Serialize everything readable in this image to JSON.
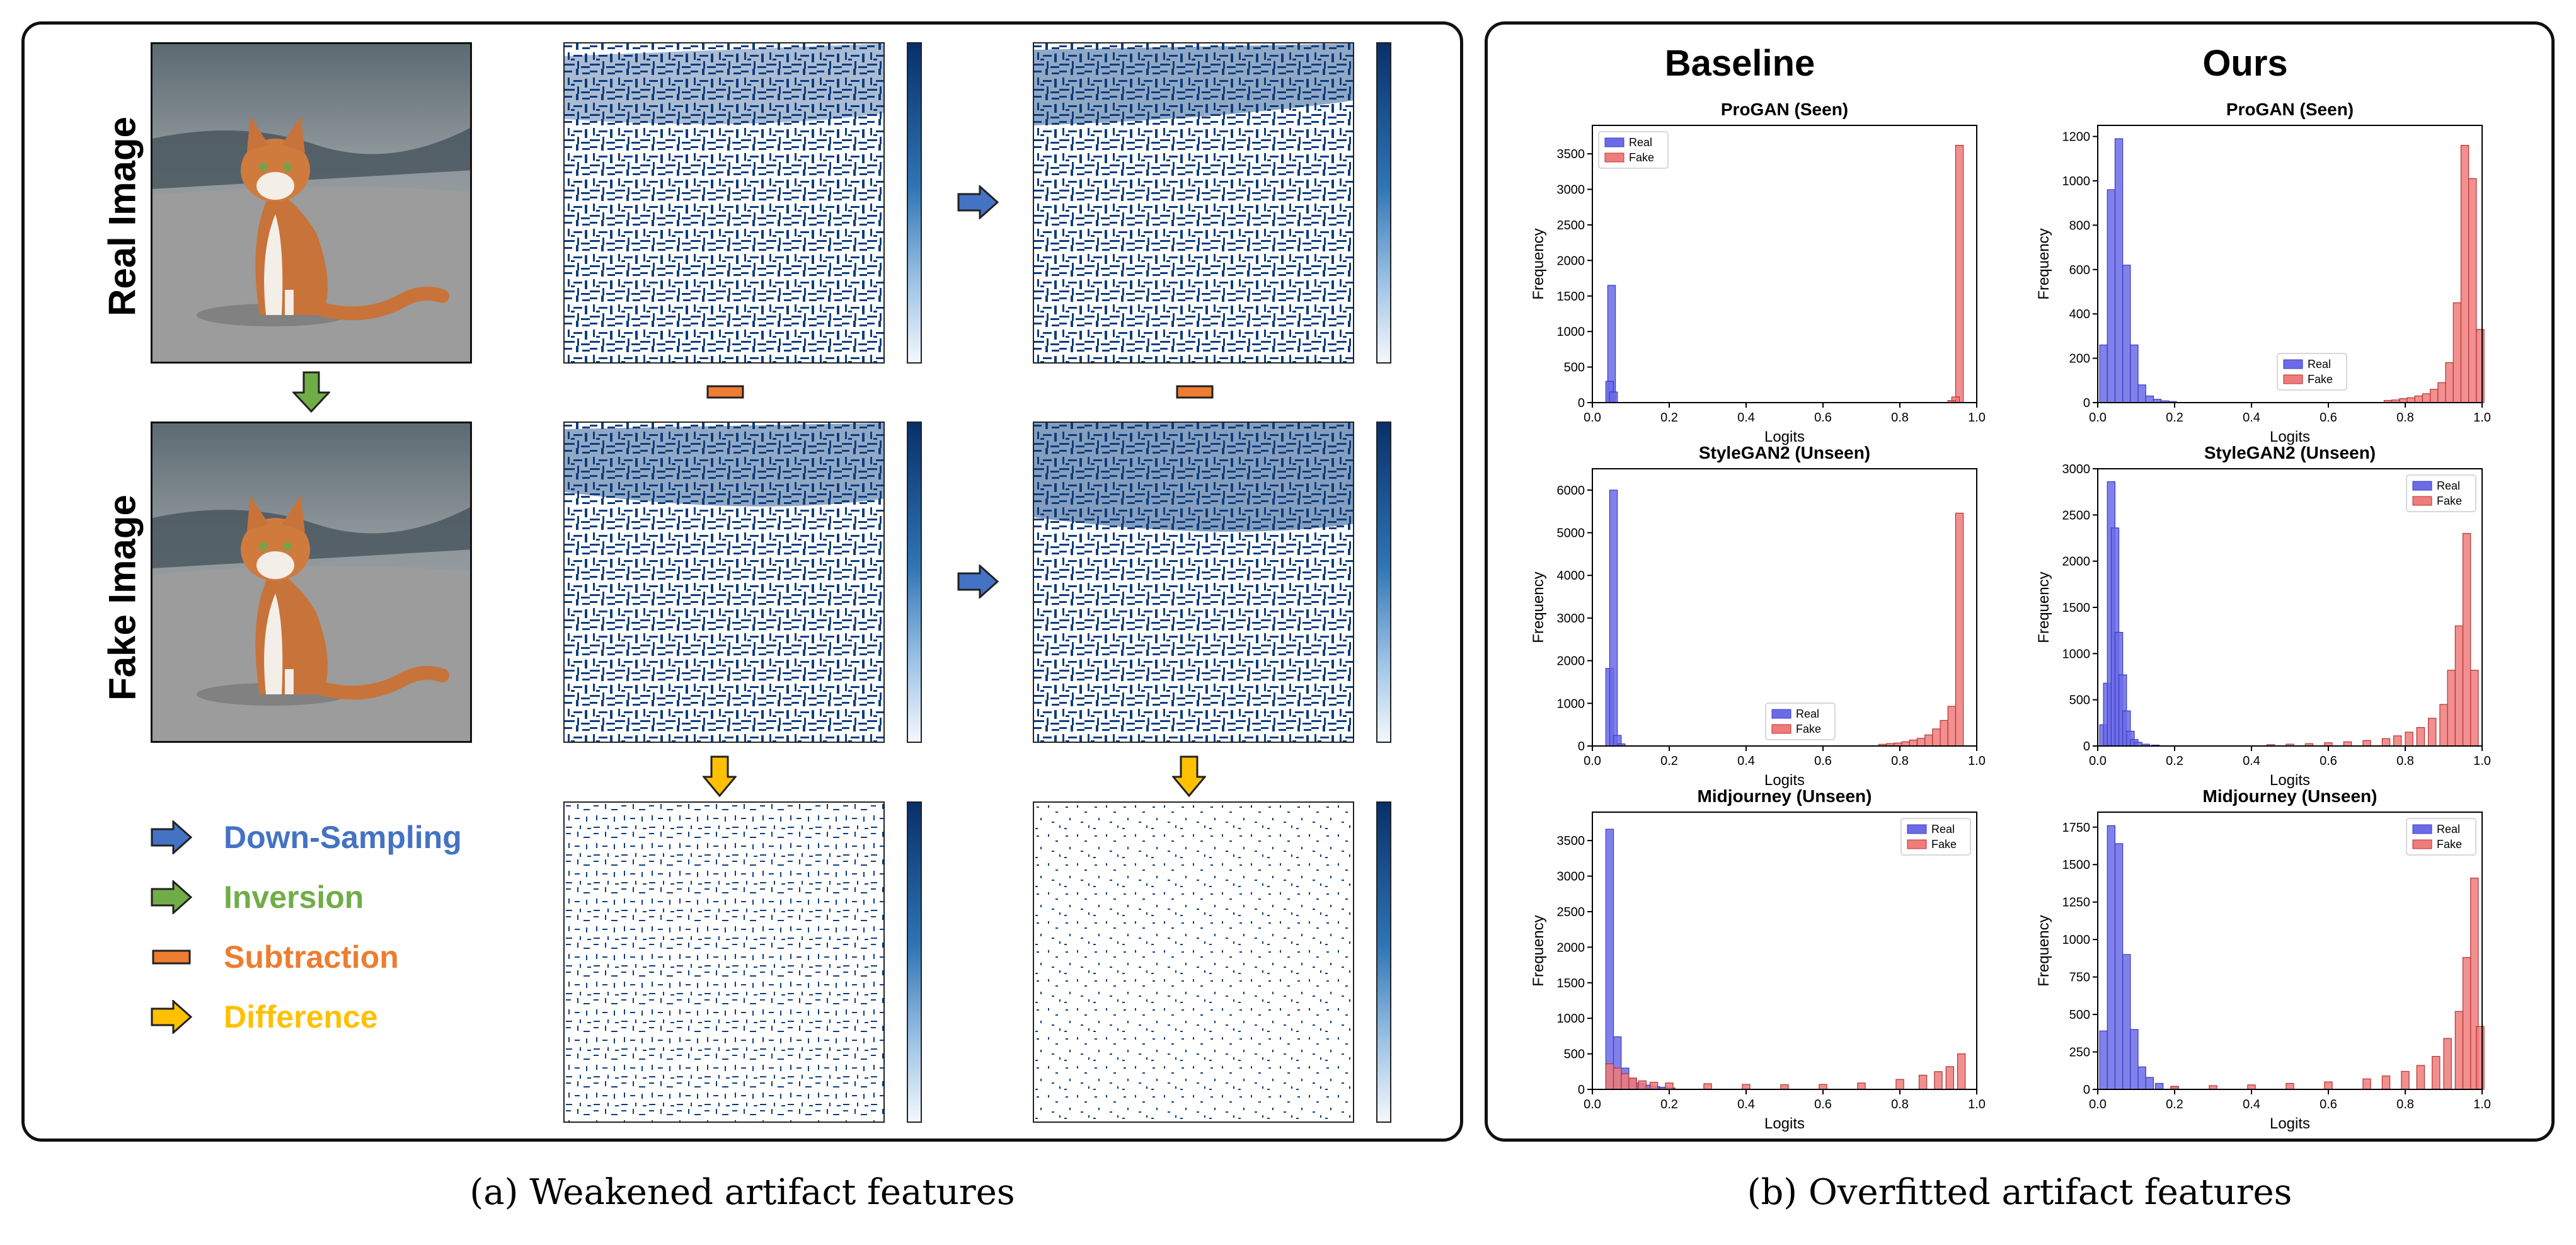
{
  "panel_a": {
    "row_labels": [
      "Real Image",
      "Fake Image"
    ],
    "legend": [
      {
        "label": "Down-Sampling",
        "color": "#4472c4"
      },
      {
        "label": "Inversion",
        "color": "#70ad47"
      },
      {
        "label": "Subtraction",
        "color": "#ed7d31"
      },
      {
        "label": "Difference",
        "color": "#ffc000"
      }
    ],
    "caption": "(a) Weakened artifact features"
  },
  "panel_b": {
    "column_headers": [
      "Baseline",
      "Ours"
    ],
    "caption": "(b) Overfitted artifact features"
  },
  "colors": {
    "real": "#6b6be8",
    "fake": "#f07b7b",
    "feature_map": "#0b3d7e"
  },
  "chart_data": [
    {
      "type": "bar",
      "title": "ProGAN (Seen)",
      "xlabel": "Logits",
      "ylabel": "Frequency",
      "xlim": [
        0,
        1
      ],
      "ylim": [
        0,
        3900
      ],
      "yticks": [
        0,
        500,
        1000,
        1500,
        2000,
        2500,
        3000,
        3500
      ],
      "xticks": [
        0.0,
        0.2,
        0.4,
        0.6,
        0.8,
        1.0
      ],
      "legend_loc": "upper-left",
      "series": [
        {
          "name": "Real",
          "peaks": [
            [
              0.05,
              1650
            ],
            [
              0.045,
              300
            ],
            [
              0.055,
              150
            ]
          ]
        },
        {
          "name": "Fake",
          "peaks": [
            [
              0.955,
              3620
            ],
            [
              0.945,
              80
            ],
            [
              0.935,
              30
            ]
          ]
        }
      ]
    },
    {
      "type": "bar",
      "title": "ProGAN (Seen)",
      "xlabel": "Logits",
      "ylabel": "Frequency",
      "xlim": [
        0,
        1
      ],
      "ylim": [
        0,
        1250
      ],
      "yticks": [
        0,
        200,
        400,
        600,
        800,
        1000,
        1200
      ],
      "xticks": [
        0.0,
        0.2,
        0.4,
        0.6,
        0.8,
        1.0
      ],
      "legend_loc": "center",
      "series": [
        {
          "name": "Real",
          "peaks": [
            [
              0.015,
              260
            ],
            [
              0.035,
              960
            ],
            [
              0.055,
              1190
            ],
            [
              0.075,
              620
            ],
            [
              0.095,
              260
            ],
            [
              0.115,
              80
            ],
            [
              0.135,
              30
            ],
            [
              0.155,
              15
            ],
            [
              0.175,
              8
            ],
            [
              0.195,
              5
            ]
          ]
        },
        {
          "name": "Fake",
          "peaks": [
            [
              0.755,
              10
            ],
            [
              0.775,
              12
            ],
            [
              0.795,
              18
            ],
            [
              0.815,
              22
            ],
            [
              0.835,
              30
            ],
            [
              0.855,
              40
            ],
            [
              0.875,
              60
            ],
            [
              0.895,
              90
            ],
            [
              0.915,
              180
            ],
            [
              0.935,
              450
            ],
            [
              0.955,
              1160
            ],
            [
              0.975,
              1010
            ],
            [
              0.995,
              330
            ]
          ]
        }
      ]
    },
    {
      "type": "bar",
      "title": "StyleGAN2 (Unseen)",
      "xlabel": "Logits",
      "ylabel": "Frequency",
      "xlim": [
        0,
        1
      ],
      "ylim": [
        0,
        6500
      ],
      "yticks": [
        0,
        1000,
        2000,
        3000,
        4000,
        5000,
        6000
      ],
      "xticks": [
        0.0,
        0.2,
        0.4,
        0.6,
        0.8,
        1.0
      ],
      "legend_loc": "lower-center",
      "series": [
        {
          "name": "Real",
          "peaks": [
            [
              0.045,
              1820
            ],
            [
              0.055,
              6000
            ],
            [
              0.065,
              250
            ],
            [
              0.075,
              50
            ]
          ]
        },
        {
          "name": "Fake",
          "peaks": [
            [
              0.755,
              40
            ],
            [
              0.775,
              55
            ],
            [
              0.795,
              70
            ],
            [
              0.815,
              100
            ],
            [
              0.835,
              140
            ],
            [
              0.855,
              180
            ],
            [
              0.875,
              260
            ],
            [
              0.895,
              400
            ],
            [
              0.915,
              600
            ],
            [
              0.935,
              930
            ],
            [
              0.955,
              5460
            ]
          ]
        }
      ]
    },
    {
      "type": "bar",
      "title": "StyleGAN2 (Unseen)",
      "xlabel": "Logits",
      "ylabel": "Frequency",
      "xlim": [
        0,
        1
      ],
      "ylim": [
        0,
        3000
      ],
      "yticks": [
        0,
        500,
        1000,
        1500,
        2000,
        2500,
        3000
      ],
      "xticks": [
        0.0,
        0.2,
        0.4,
        0.6,
        0.8,
        1.0
      ],
      "legend_loc": "upper-right",
      "series": [
        {
          "name": "Real",
          "peaks": [
            [
              0.015,
              230
            ],
            [
              0.025,
              680
            ],
            [
              0.035,
              2860
            ],
            [
              0.045,
              2360
            ],
            [
              0.055,
              1230
            ],
            [
              0.065,
              770
            ],
            [
              0.075,
              380
            ],
            [
              0.085,
              160
            ],
            [
              0.095,
              70
            ],
            [
              0.105,
              40
            ],
            [
              0.125,
              20
            ],
            [
              0.15,
              10
            ]
          ]
        },
        {
          "name": "Fake",
          "peaks": [
            [
              0.45,
              15
            ],
            [
              0.5,
              20
            ],
            [
              0.55,
              25
            ],
            [
              0.6,
              35
            ],
            [
              0.65,
              45
            ],
            [
              0.7,
              60
            ],
            [
              0.75,
              80
            ],
            [
              0.78,
              110
            ],
            [
              0.81,
              150
            ],
            [
              0.84,
              200
            ],
            [
              0.87,
              300
            ],
            [
              0.9,
              450
            ],
            [
              0.92,
              820
            ],
            [
              0.94,
              1300
            ],
            [
              0.96,
              2300
            ],
            [
              0.98,
              820
            ]
          ]
        }
      ]
    },
    {
      "type": "bar",
      "title": "Midjourney (Unseen)",
      "xlabel": "Logits",
      "ylabel": "Frequency",
      "xlim": [
        0,
        1
      ],
      "ylim": [
        0,
        3900
      ],
      "yticks": [
        0,
        500,
        1000,
        1500,
        2000,
        2500,
        3000,
        3500
      ],
      "xticks": [
        0.0,
        0.2,
        0.4,
        0.6,
        0.8,
        1.0
      ],
      "legend_loc": "upper-right",
      "series": [
        {
          "name": "Real",
          "peaks": [
            [
              0.045,
              3660
            ],
            [
              0.065,
              740
            ],
            [
              0.085,
              300
            ],
            [
              0.105,
              150
            ],
            [
              0.125,
              90
            ],
            [
              0.145,
              60
            ],
            [
              0.165,
              40
            ],
            [
              0.185,
              30
            ],
            [
              0.205,
              20
            ]
          ]
        },
        {
          "name": "Fake",
          "peaks": [
            [
              0.045,
              360
            ],
            [
              0.065,
              300
            ],
            [
              0.085,
              220
            ],
            [
              0.105,
              160
            ],
            [
              0.13,
              120
            ],
            [
              0.16,
              100
            ],
            [
              0.2,
              90
            ],
            [
              0.3,
              80
            ],
            [
              0.4,
              70
            ],
            [
              0.5,
              65
            ],
            [
              0.6,
              70
            ],
            [
              0.7,
              90
            ],
            [
              0.8,
              140
            ],
            [
              0.86,
              200
            ],
            [
              0.9,
              250
            ],
            [
              0.93,
              320
            ],
            [
              0.96,
              500
            ]
          ]
        }
      ]
    },
    {
      "type": "bar",
      "title": "Midjourney (Unseen)",
      "xlabel": "Logits",
      "ylabel": "Frequency",
      "xlim": [
        0,
        1
      ],
      "ylim": [
        0,
        1850
      ],
      "yticks": [
        0,
        250,
        500,
        750,
        1000,
        1250,
        1500,
        1750
      ],
      "xticks": [
        0.0,
        0.2,
        0.4,
        0.6,
        0.8,
        1.0
      ],
      "legend_loc": "upper-right",
      "series": [
        {
          "name": "Real",
          "peaks": [
            [
              0.015,
              390
            ],
            [
              0.035,
              1760
            ],
            [
              0.055,
              1640
            ],
            [
              0.075,
              900
            ],
            [
              0.095,
              400
            ],
            [
              0.115,
              150
            ],
            [
              0.135,
              80
            ],
            [
              0.16,
              40
            ],
            [
              0.2,
              20
            ]
          ]
        },
        {
          "name": "Fake",
          "peaks": [
            [
              0.2,
              20
            ],
            [
              0.3,
              25
            ],
            [
              0.4,
              30
            ],
            [
              0.5,
              40
            ],
            [
              0.6,
              50
            ],
            [
              0.7,
              70
            ],
            [
              0.75,
              90
            ],
            [
              0.8,
              120
            ],
            [
              0.84,
              160
            ],
            [
              0.88,
              220
            ],
            [
              0.91,
              340
            ],
            [
              0.94,
              520
            ],
            [
              0.96,
              880
            ],
            [
              0.98,
              1410
            ],
            [
              0.995,
              420
            ]
          ]
        }
      ]
    }
  ]
}
